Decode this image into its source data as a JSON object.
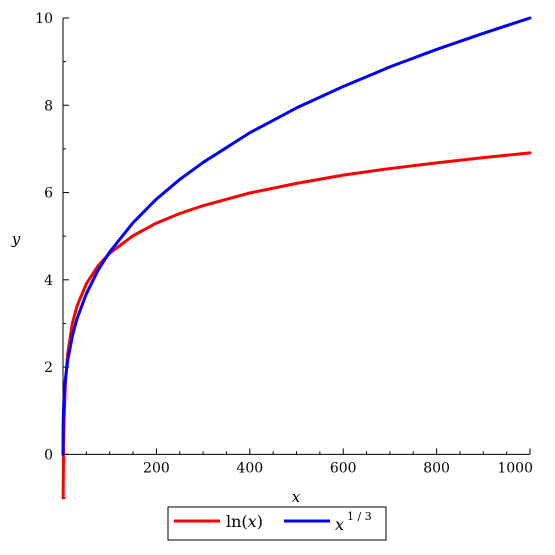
{
  "chart_data": {
    "type": "line",
    "title": "",
    "xlabel": "x",
    "ylabel": "y",
    "xlim": [
      0,
      1000
    ],
    "ylim": [
      -1,
      10
    ],
    "x_ticks": [
      200,
      400,
      600,
      800,
      1000
    ],
    "x_tick_labels": [
      "200",
      "400",
      "600",
      "800",
      "1000"
    ],
    "y_ticks": [
      0,
      2,
      4,
      6,
      8,
      10
    ],
    "y_tick_labels": [
      "0",
      "2",
      "4",
      "6",
      "8",
      "10"
    ],
    "grid": false,
    "legend_position": "bottom-center",
    "series": [
      {
        "name": "ln(x)",
        "legend_base": "ln(",
        "legend_var": "x",
        "legend_close": ")",
        "color": "#ff0000",
        "x": [
          0.35,
          0.5,
          1,
          2,
          5,
          10,
          20,
          30,
          50,
          75,
          100,
          150,
          200,
          250,
          300,
          400,
          500,
          600,
          700,
          800,
          900,
          1000
        ],
        "y": [
          -1.05,
          -0.69,
          0,
          0.69,
          1.61,
          2.3,
          3.0,
          3.4,
          3.91,
          4.32,
          4.61,
          5.01,
          5.3,
          5.52,
          5.7,
          5.99,
          6.21,
          6.4,
          6.55,
          6.68,
          6.8,
          6.91
        ]
      },
      {
        "name": "x^(1/3)",
        "legend_base": "x",
        "legend_sup": "1 / 3",
        "color": "#0000ff",
        "x": [
          0,
          0.5,
          1,
          2,
          5,
          10,
          20,
          30,
          50,
          75,
          100,
          150,
          200,
          250,
          300,
          400,
          500,
          600,
          700,
          800,
          900,
          1000
        ],
        "y": [
          0,
          0.79,
          1.0,
          1.26,
          1.71,
          2.15,
          2.71,
          3.11,
          3.68,
          4.22,
          4.64,
          5.31,
          5.85,
          6.3,
          6.69,
          7.37,
          7.94,
          8.43,
          8.88,
          9.28,
          9.65,
          10.0
        ]
      }
    ]
  }
}
